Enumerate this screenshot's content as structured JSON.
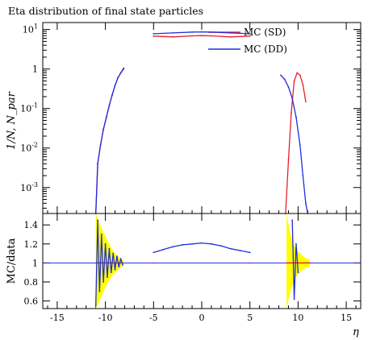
{
  "title": "Eta distribution of final state particles",
  "legend": [
    {
      "label": "MC (SD)",
      "color": "#e8202a"
    },
    {
      "label": "MC (DD)",
      "color": "#1f2ee0"
    }
  ],
  "main_ylabel": "1/N, N_par",
  "ratio_ylabel": "MC/data",
  "xlabel": "η",
  "chart_data": [
    {
      "type": "line",
      "panel": "main",
      "title": "Eta distribution of final state particles",
      "xlabel": "",
      "ylabel": "1/N, N_par",
      "yscale": "log",
      "xlim": [
        -16.5,
        16.5
      ],
      "ylim": [
        0.00022,
        15
      ],
      "ytick_labels": [
        "10^-3",
        "10^-2",
        "10^-1",
        "1",
        "10^1"
      ],
      "legend_position": "top-right",
      "series": [
        {
          "name": "MC (SD)",
          "color": "#e8202a",
          "x": [
            -11.0,
            -10.8,
            -10.5,
            -10.2,
            -9.9,
            -9.6,
            -9.3,
            -9.0,
            -8.7,
            -8.4,
            -8.1,
            -5.0,
            -3.0,
            -1.0,
            0.0,
            1.0,
            3.0,
            5.0,
            8.7,
            9.0,
            9.3,
            9.6,
            9.9,
            10.2,
            10.5,
            10.8
          ],
          "y": [
            0.0002,
            0.004,
            0.012,
            0.03,
            0.06,
            0.12,
            0.22,
            0.38,
            0.6,
            0.8,
            1.0,
            6.8,
            6.5,
            6.9,
            7.0,
            6.9,
            6.5,
            6.8,
            0.0002,
            0.005,
            0.08,
            0.5,
            0.8,
            0.7,
            0.4,
            0.15
          ]
        },
        {
          "name": "MC (DD)",
          "color": "#1f2ee0",
          "x": [
            -11.0,
            -10.8,
            -10.5,
            -10.2,
            -9.9,
            -9.6,
            -9.3,
            -9.0,
            -8.7,
            -8.4,
            -8.1,
            -5.0,
            -3.0,
            -1.0,
            0.0,
            1.0,
            3.0,
            5.0,
            8.2,
            8.6,
            9.0,
            9.4,
            9.8,
            10.2,
            10.5,
            10.8,
            11.0
          ],
          "y": [
            0.0002,
            0.004,
            0.012,
            0.03,
            0.06,
            0.12,
            0.22,
            0.38,
            0.6,
            0.8,
            1.05,
            7.8,
            8.2,
            8.6,
            8.7,
            8.6,
            8.2,
            7.8,
            0.7,
            0.55,
            0.35,
            0.18,
            0.06,
            0.012,
            0.002,
            0.0004,
            0.0002
          ]
        }
      ]
    },
    {
      "type": "line",
      "panel": "ratio",
      "xlabel": "η",
      "ylabel": "MC/data",
      "xlim": [
        -16.5,
        16.5
      ],
      "ylim": [
        0.52,
        1.52
      ],
      "xticks": [
        -15,
        -10,
        -5,
        0,
        5,
        10,
        15
      ],
      "yticks": [
        0.6,
        0.8,
        1,
        1.2,
        1.4
      ],
      "reference_line": 1,
      "uncertainty_band": {
        "color": "#ffff00",
        "x": [
          -11.0,
          -10.6,
          -10.2,
          -9.8,
          -9.4,
          -9.0,
          -8.6,
          -8.2,
          -5.0,
          5.0,
          8.8,
          9.2,
          9.6,
          10.0,
          10.4,
          10.8,
          11.2
        ],
        "low": [
          0.52,
          0.6,
          0.7,
          0.78,
          0.85,
          0.9,
          0.94,
          0.96,
          0.985,
          0.985,
          0.52,
          0.7,
          0.82,
          0.88,
          0.92,
          0.95,
          0.96
        ],
        "high": [
          1.52,
          1.42,
          1.32,
          1.24,
          1.16,
          1.1,
          1.06,
          1.04,
          1.015,
          1.015,
          1.52,
          1.3,
          1.18,
          1.12,
          1.08,
          1.05,
          1.04
        ]
      },
      "series": [
        {
          "name": "MC (SD)",
          "color": "#e8202a",
          "x": [
            -11.0,
            -10.6,
            -10.2,
            -9.8,
            -9.4,
            -9.0,
            -8.6,
            -8.2,
            -5.0,
            5.0,
            8.8,
            9.2,
            9.6,
            10.0,
            10.4,
            10.8,
            11.2
          ],
          "y": [
            1.0,
            1.0,
            1.0,
            1.0,
            1.0,
            1.0,
            1.0,
            1.0,
            1.0,
            1.0,
            1.0,
            1.0,
            1.0,
            1.0,
            1.0,
            1.0,
            1.0
          ]
        },
        {
          "name": "MC (DD)",
          "color": "#1f2ee0",
          "x": [
            -11.0,
            -10.8,
            -10.6,
            -10.4,
            -10.2,
            -10.0,
            -9.8,
            -9.6,
            -9.4,
            -9.2,
            -9.0,
            -8.8,
            -8.6,
            -8.4,
            -8.2,
            -5.0,
            -4.0,
            -3.0,
            -2.0,
            -1.0,
            0.0,
            1.0,
            2.0,
            3.0,
            4.0,
            5.0,
            9.4,
            9.6,
            9.8,
            10.0
          ],
          "y": [
            0.55,
            1.45,
            0.7,
            1.3,
            0.8,
            1.2,
            0.85,
            1.15,
            0.9,
            1.1,
            0.93,
            1.07,
            0.96,
            1.04,
            0.98,
            1.11,
            1.14,
            1.17,
            1.19,
            1.2,
            1.21,
            1.2,
            1.18,
            1.15,
            1.13,
            1.11,
            1.45,
            0.62,
            1.2,
            0.9
          ]
        }
      ]
    }
  ]
}
